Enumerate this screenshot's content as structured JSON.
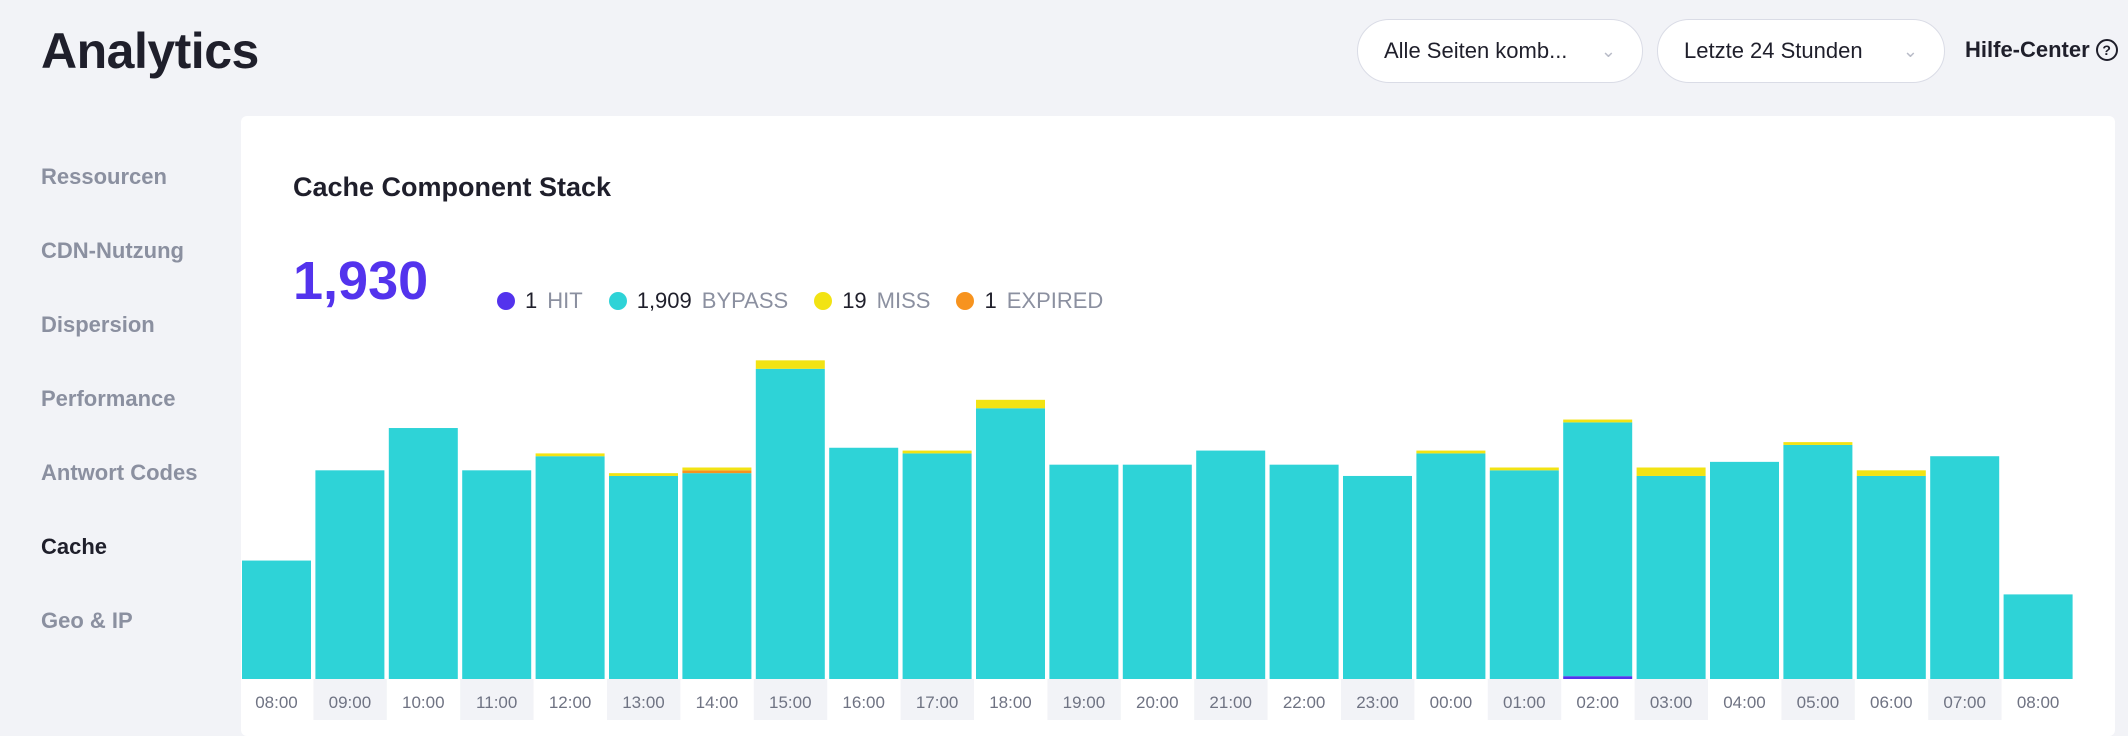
{
  "header": {
    "title": "Analytics",
    "page_select": "Alle Seiten komb...",
    "range_select": "Letzte 24 Stunden",
    "help": "Hilfe-Center"
  },
  "sidebar": {
    "items": [
      {
        "label": "Ressourcen"
      },
      {
        "label": "CDN-Nutzung"
      },
      {
        "label": "Dispersion"
      },
      {
        "label": "Performance"
      },
      {
        "label": "Antwort Codes"
      },
      {
        "label": "Cache",
        "active": true
      },
      {
        "label": "Geo & IP"
      }
    ]
  },
  "card": {
    "title": "Cache Component Stack",
    "total": "1,930",
    "legend": [
      {
        "count": "1",
        "label": "HIT",
        "color": "#5333ed"
      },
      {
        "count": "1,909",
        "label": "BYPASS",
        "color": "#2ed3d7"
      },
      {
        "count": "19",
        "label": "MISS",
        "color": "#f2e313"
      },
      {
        "count": "1",
        "label": "EXPIRED",
        "color": "#f7931e"
      }
    ]
  },
  "chart_data": {
    "type": "bar",
    "stacked": true,
    "title": "Cache Component Stack",
    "categories": [
      "08:00",
      "09:00",
      "10:00",
      "11:00",
      "12:00",
      "13:00",
      "14:00",
      "15:00",
      "16:00",
      "17:00",
      "18:00",
      "19:00",
      "20:00",
      "21:00",
      "22:00",
      "23:00",
      "00:00",
      "01:00",
      "02:00",
      "03:00",
      "04:00",
      "05:00",
      "06:00",
      "07:00",
      "08:00"
    ],
    "series": [
      {
        "name": "HIT",
        "color": "#5333ed",
        "values": [
          0,
          0,
          0,
          0,
          0,
          0,
          0,
          0,
          0,
          0,
          0,
          0,
          0,
          0,
          0,
          0,
          0,
          0,
          1,
          0,
          0,
          0,
          0,
          0,
          0
        ]
      },
      {
        "name": "BYPASS",
        "color": "#2ed3d7",
        "values": [
          42,
          74,
          89,
          74,
          79,
          72,
          73,
          110,
          82,
          80,
          96,
          76,
          76,
          81,
          76,
          72,
          80,
          74,
          90,
          72,
          77,
          83,
          72,
          79,
          30
        ]
      },
      {
        "name": "EXPIRED",
        "color": "#f7931e",
        "values": [
          0,
          0,
          0,
          0,
          0,
          0,
          1,
          0,
          0,
          0,
          0,
          0,
          0,
          0,
          0,
          0,
          0,
          0,
          0,
          0,
          0,
          0,
          0,
          0,
          0
        ]
      },
      {
        "name": "MISS",
        "color": "#f2e313",
        "values": [
          0,
          0,
          0,
          0,
          1,
          1,
          1,
          3,
          0,
          1,
          3,
          0,
          0,
          0,
          0,
          0,
          1,
          1,
          1,
          3,
          0,
          1,
          2,
          0,
          0
        ]
      }
    ],
    "grid": false,
    "legend": "top-left"
  }
}
